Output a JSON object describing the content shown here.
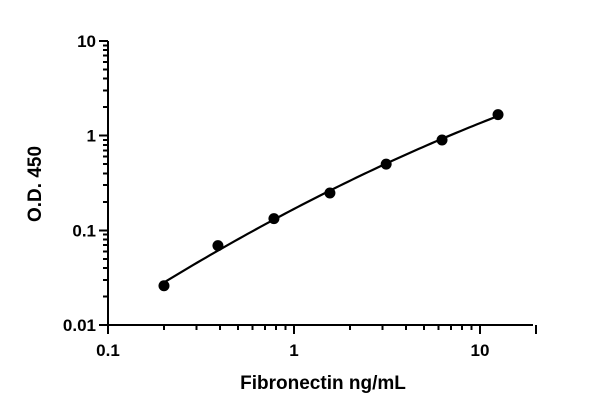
{
  "chart_data": {
    "type": "scatter",
    "x_scale": "log",
    "y_scale": "log",
    "xlabel": "Fibronectin ng/mL",
    "ylabel": "O.D. 450",
    "xlim": [
      0.1,
      20
    ],
    "ylim": [
      0.01,
      10
    ],
    "x_ticks": [
      {
        "value": 0.1,
        "label": "0.1"
      },
      {
        "value": 1,
        "label": "1"
      },
      {
        "value": 10,
        "label": "10"
      }
    ],
    "y_ticks": [
      {
        "value": 0.01,
        "label": "0.01"
      },
      {
        "value": 0.1,
        "label": "0.1"
      },
      {
        "value": 1,
        "label": "1"
      },
      {
        "value": 10,
        "label": "10"
      }
    ],
    "series": [
      {
        "x": [
          0.2,
          0.39,
          0.78,
          1.56,
          3.13,
          6.25,
          12.5
        ],
        "y": [
          0.026,
          0.069,
          0.133,
          0.248,
          0.5,
          0.9,
          1.67
        ]
      }
    ],
    "fit_curve": true,
    "grid": false,
    "marker_color": "#000000",
    "line_color": "#000000"
  }
}
